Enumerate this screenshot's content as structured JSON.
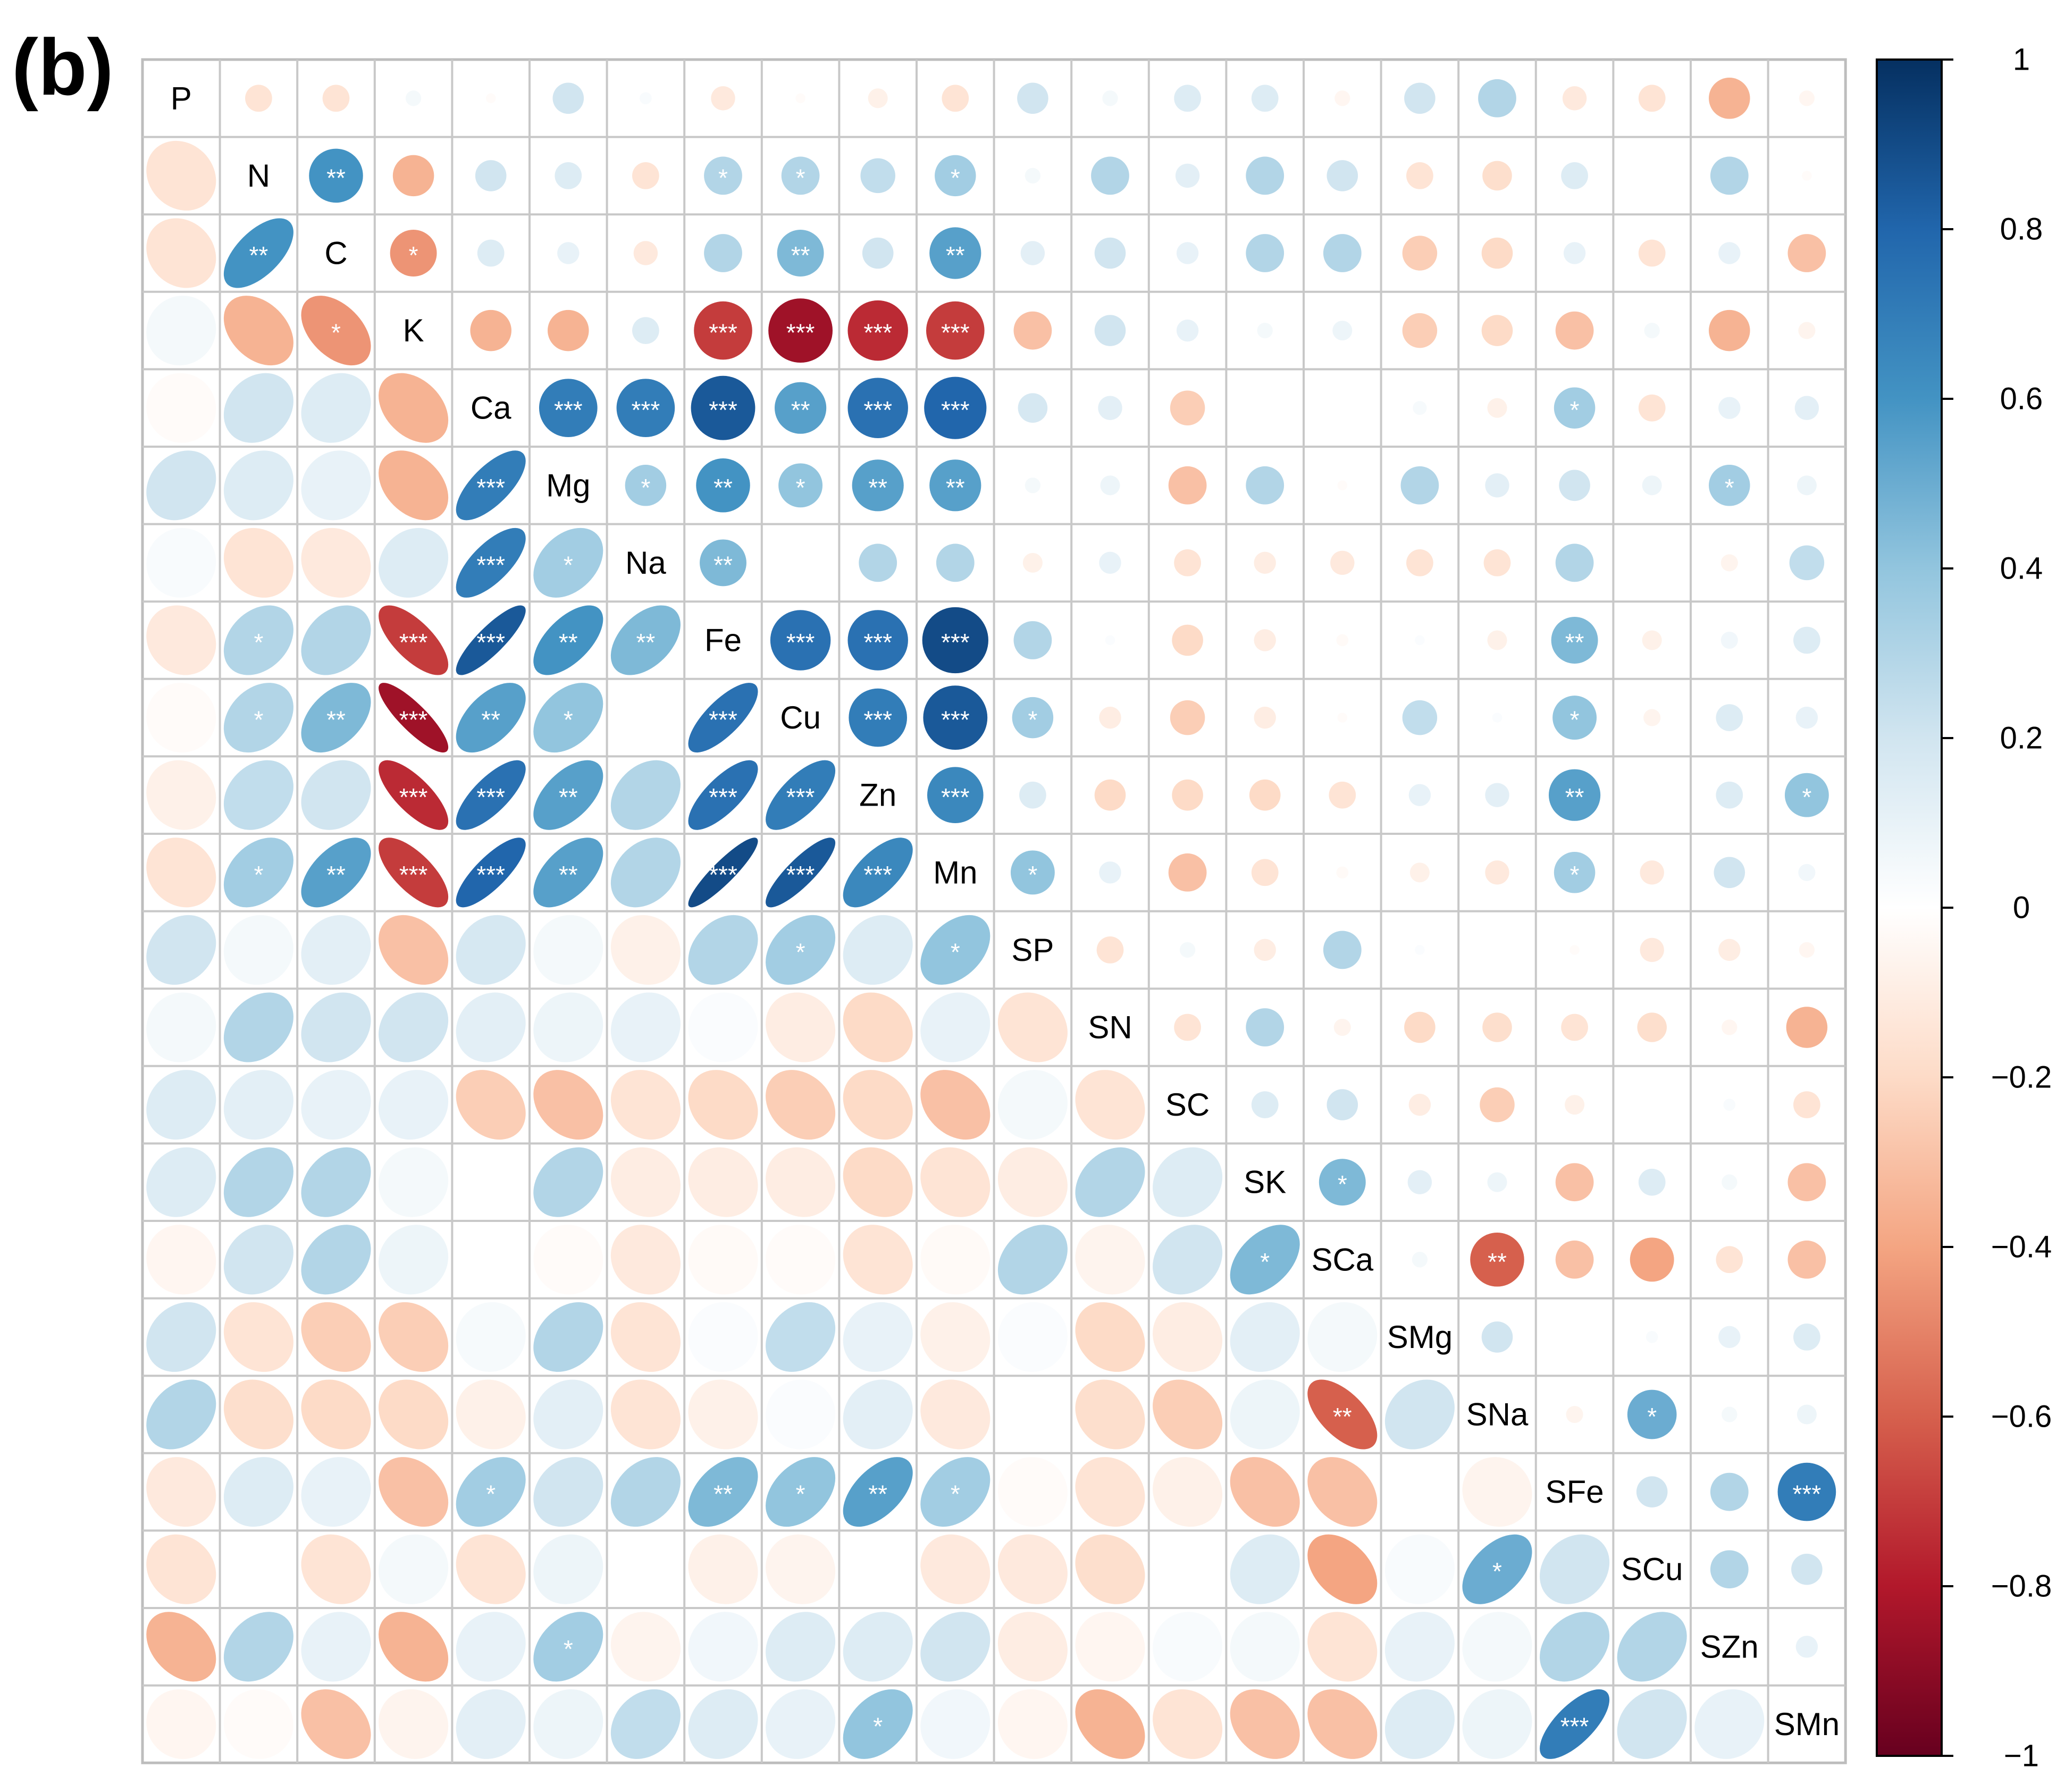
{
  "panel_label": "(b)",
  "chart_data": {
    "type": "heatmap",
    "subtype": "mixed correlation matrix (upper: circles, lower: ellipses)",
    "variables": [
      "P",
      "N",
      "C",
      "K",
      "Ca",
      "Mg",
      "Na",
      "Fe",
      "Cu",
      "Zn",
      "Mn",
      "SP",
      "SN",
      "SC",
      "SK",
      "SCa",
      "SMg",
      "SNa",
      "SFe",
      "SCu",
      "SZn",
      "SMn"
    ],
    "upper": [
      [
        null,
        -0.15,
        -0.15,
        0.05,
        -0.02,
        0.2,
        0.03,
        -0.12,
        -0.02,
        -0.08,
        -0.15,
        0.2,
        0.05,
        0.15,
        0.15,
        -0.05,
        0.2,
        0.3,
        -0.12,
        -0.15,
        -0.35,
        -0.05
      ],
      [
        -0.15,
        null,
        0.6,
        -0.35,
        0.2,
        0.15,
        -0.15,
        0.3,
        0.3,
        0.25,
        0.35,
        0.05,
        0.3,
        0.12,
        0.3,
        0.2,
        -0.15,
        -0.18,
        0.15,
        0,
        0.3,
        -0.02
      ],
      [
        -0.15,
        0.6,
        null,
        -0.45,
        0.15,
        0.1,
        -0.12,
        0.3,
        0.45,
        0.2,
        0.55,
        0.12,
        0.2,
        0.1,
        0.3,
        0.3,
        -0.25,
        -0.2,
        0.1,
        -0.15,
        0.1,
        -0.3
      ],
      [
        0.05,
        -0.35,
        -0.45,
        null,
        -0.35,
        -0.35,
        0.15,
        -0.7,
        -0.85,
        -0.75,
        -0.7,
        -0.3,
        0.2,
        0.1,
        0.05,
        0.08,
        -0.25,
        -0.2,
        -0.3,
        0.05,
        -0.35,
        -0.06
      ],
      [
        -0.02,
        0.2,
        0.15,
        -0.35,
        null,
        0.7,
        0.7,
        0.85,
        0.55,
        0.75,
        0.8,
        0.18,
        0.12,
        -0.25,
        0,
        0,
        0.04,
        -0.08,
        0.35,
        -0.15,
        0.1,
        0.12
      ],
      [
        0.2,
        0.15,
        0.1,
        -0.35,
        0.7,
        null,
        0.35,
        0.6,
        0.4,
        0.55,
        0.55,
        0.05,
        0.08,
        -0.3,
        0.3,
        -0.02,
        0.3,
        0.12,
        0.2,
        0.08,
        0.35,
        0.08
      ],
      [
        0.03,
        -0.15,
        -0.12,
        0.15,
        0.7,
        0.35,
        null,
        0.45,
        0,
        0.3,
        0.3,
        -0.08,
        0.1,
        -0.15,
        -0.1,
        -0.12,
        -0.15,
        -0.15,
        0.3,
        0,
        -0.06,
        0.25
      ],
      [
        -0.12,
        0.3,
        0.3,
        -0.7,
        0.85,
        0.6,
        0.45,
        null,
        0.75,
        0.75,
        0.9,
        0.3,
        0.02,
        -0.2,
        -0.1,
        -0.03,
        0.02,
        -0.08,
        0.45,
        -0.08,
        0.06,
        0.15
      ],
      [
        -0.02,
        0.3,
        0.45,
        -0.85,
        0.55,
        0.4,
        0,
        0.75,
        null,
        0.7,
        0.85,
        0.35,
        -0.1,
        -0.25,
        -0.1,
        -0.02,
        0.25,
        0.02,
        0.4,
        -0.06,
        0.15,
        0.1
      ],
      [
        -0.08,
        0.25,
        0.2,
        -0.75,
        0.75,
        0.55,
        0.3,
        0.75,
        0.7,
        null,
        0.65,
        0.15,
        -0.2,
        -0.2,
        -0.2,
        -0.15,
        0.1,
        0.12,
        0.55,
        0,
        0.15,
        0.4
      ],
      [
        -0.15,
        0.35,
        0.55,
        -0.7,
        0.8,
        0.55,
        0.3,
        0.9,
        0.85,
        0.65,
        null,
        0.4,
        0.1,
        -0.3,
        -0.15,
        -0.03,
        -0.08,
        -0.12,
        0.35,
        -0.12,
        0.2,
        0.06
      ],
      [
        0.2,
        0.05,
        0.12,
        -0.3,
        0.18,
        0.05,
        -0.08,
        0.3,
        0.35,
        0.15,
        0.4,
        null,
        -0.15,
        0.05,
        -0.1,
        0.3,
        0.02,
        0,
        -0.02,
        -0.12,
        -0.1,
        -0.05
      ],
      [
        0.05,
        0.3,
        0.2,
        0.2,
        0.12,
        0.08,
        0.1,
        0.02,
        -0.1,
        -0.2,
        0.1,
        -0.15,
        null,
        -0.15,
        0.3,
        -0.06,
        -0.2,
        -0.18,
        -0.15,
        -0.18,
        -0.05,
        -0.35
      ],
      [
        0.15,
        0.12,
        0.1,
        0.1,
        -0.25,
        -0.3,
        -0.15,
        -0.2,
        -0.25,
        -0.2,
        -0.3,
        0.05,
        -0.15,
        null,
        0.15,
        0.2,
        -0.1,
        -0.25,
        -0.08,
        0,
        0.03,
        -0.15
      ],
      [
        0.15,
        0.3,
        0.3,
        0.05,
        0,
        0.3,
        -0.1,
        -0.1,
        -0.1,
        -0.2,
        -0.15,
        -0.1,
        0.3,
        0.15,
        null,
        0.45,
        0.12,
        0.08,
        -0.3,
        0.15,
        0.05,
        -0.3
      ],
      [
        -0.05,
        0.2,
        0.3,
        0.08,
        0,
        -0.02,
        -0.12,
        -0.03,
        -0.02,
        -0.15,
        -0.03,
        0.3,
        -0.06,
        0.2,
        0.45,
        null,
        0.05,
        -0.6,
        -0.3,
        -0.4,
        -0.15,
        -0.3
      ],
      [
        0.2,
        -0.15,
        -0.25,
        -0.25,
        0.04,
        0.3,
        -0.15,
        0.02,
        0.25,
        0.1,
        -0.08,
        0.02,
        -0.2,
        -0.1,
        0.12,
        0.05,
        null,
        0.2,
        0,
        0.03,
        0.1,
        0.15
      ],
      [
        0.3,
        -0.18,
        -0.2,
        -0.2,
        -0.08,
        0.12,
        -0.15,
        -0.08,
        0.02,
        0.12,
        -0.12,
        0,
        -0.18,
        -0.25,
        0.08,
        -0.6,
        0.2,
        null,
        -0.06,
        0.5,
        0.05,
        0.08
      ],
      [
        -0.12,
        0.15,
        0.1,
        -0.3,
        0.35,
        0.2,
        0.3,
        0.45,
        0.4,
        0.55,
        0.35,
        -0.02,
        -0.15,
        -0.08,
        -0.3,
        -0.3,
        0,
        -0.06,
        null,
        0.2,
        0.3,
        0.7
      ],
      [
        -0.15,
        0,
        -0.15,
        0.05,
        -0.15,
        0.08,
        0,
        -0.08,
        -0.06,
        0,
        -0.12,
        -0.12,
        -0.18,
        0,
        0.15,
        -0.4,
        0.03,
        0.5,
        0.2,
        null,
        0.3,
        0.2
      ],
      [
        -0.35,
        0.3,
        0.1,
        -0.35,
        0.1,
        0.35,
        -0.06,
        0.06,
        0.15,
        0.15,
        0.2,
        -0.1,
        -0.05,
        0.03,
        0.05,
        -0.15,
        0.1,
        0.05,
        0.3,
        0.3,
        null,
        0.1
      ],
      [
        -0.05,
        -0.02,
        -0.3,
        -0.06,
        0.12,
        0.08,
        0.25,
        0.15,
        0.1,
        0.4,
        0.06,
        -0.05,
        -0.35,
        -0.15,
        -0.3,
        -0.3,
        0.15,
        0.08,
        0.7,
        0.2,
        0.1,
        null
      ]
    ],
    "significance": [
      [
        "N",
        "C",
        "**"
      ],
      [
        "N",
        "Fe",
        "*"
      ],
      [
        "N",
        "Cu",
        "*"
      ],
      [
        "N",
        "Mn",
        "*"
      ],
      [
        "C",
        "K",
        "*"
      ],
      [
        "C",
        "Cu",
        "**"
      ],
      [
        "C",
        "Mn",
        "**"
      ],
      [
        "K",
        "Fe",
        "***"
      ],
      [
        "K",
        "Cu",
        "***"
      ],
      [
        "K",
        "Zn",
        "***"
      ],
      [
        "K",
        "Mn",
        "***"
      ],
      [
        "Ca",
        "Mg",
        "***"
      ],
      [
        "Ca",
        "Na",
        "***"
      ],
      [
        "Ca",
        "Fe",
        "***"
      ],
      [
        "Ca",
        "Cu",
        "**"
      ],
      [
        "Ca",
        "Zn",
        "***"
      ],
      [
        "Ca",
        "Mn",
        "***"
      ],
      [
        "Ca",
        "SFe",
        "*"
      ],
      [
        "Mg",
        "Na",
        "*"
      ],
      [
        "Mg",
        "Fe",
        "**"
      ],
      [
        "Mg",
        "Cu",
        "*"
      ],
      [
        "Mg",
        "Zn",
        "**"
      ],
      [
        "Mg",
        "Mn",
        "**"
      ],
      [
        "Mg",
        "SZn",
        "*"
      ],
      [
        "Na",
        "Fe",
        "**"
      ],
      [
        "Fe",
        "Cu",
        "***"
      ],
      [
        "Fe",
        "Zn",
        "***"
      ],
      [
        "Fe",
        "Mn",
        "***"
      ],
      [
        "Fe",
        "SFe",
        "**"
      ],
      [
        "Cu",
        "Zn",
        "***"
      ],
      [
        "Cu",
        "Mn",
        "***"
      ],
      [
        "Cu",
        "SP",
        "*"
      ],
      [
        "Cu",
        "SFe",
        "*"
      ],
      [
        "Zn",
        "Mn",
        "***"
      ],
      [
        "Zn",
        "SFe",
        "**"
      ],
      [
        "Zn",
        "SMn",
        "*"
      ],
      [
        "Mn",
        "SP",
        "*"
      ],
      [
        "Mn",
        "SFe",
        "*"
      ],
      [
        "SK",
        "SCa",
        "*"
      ],
      [
        "SCa",
        "SNa",
        "**"
      ],
      [
        "SNa",
        "SCu",
        "*"
      ],
      [
        "SFe",
        "SMn",
        "***"
      ]
    ],
    "colorbar": {
      "range": [
        -1,
        1
      ],
      "ticks": [
        1,
        0.8,
        0.6,
        0.4,
        0.2,
        0,
        -0.2,
        -0.4,
        -0.6,
        -0.8,
        -1
      ],
      "tick_labels": [
        "1",
        "0.8",
        "0.6",
        "0.4",
        "0.2",
        "0",
        "−0.2",
        "−0.4",
        "−0.6",
        "−0.8",
        "−1"
      ],
      "stops": [
        "#67001f",
        "#b2182b",
        "#d6604d",
        "#f4a582",
        "#fddbc7",
        "#ffffff",
        "#d1e5f0",
        "#92c5de",
        "#4393c3",
        "#2166ac",
        "#053061"
      ]
    }
  }
}
